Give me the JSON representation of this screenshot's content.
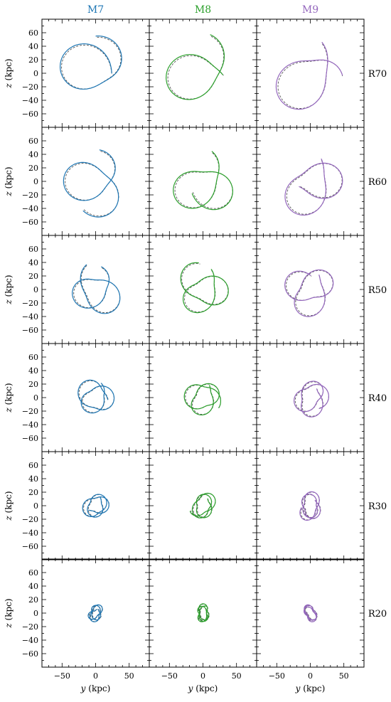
{
  "columns": [
    {
      "label": "M7",
      "color": "#1f77b4"
    },
    {
      "label": "M8",
      "color": "#2ca02c"
    },
    {
      "label": "M9",
      "color": "#9467bd"
    }
  ],
  "rows": [
    {
      "label": "R70",
      "radius": 55
    },
    {
      "label": "R60",
      "radius": 48
    },
    {
      "label": "R50",
      "radius": 38
    },
    {
      "label": "R40",
      "radius": 28
    },
    {
      "label": "R30",
      "radius": 20
    },
    {
      "label": "R20",
      "radius": 12
    }
  ],
  "axes": {
    "xlabel_var": "y",
    "xlabel_unit": " (kpc)",
    "ylabel_var": "z",
    "ylabel_unit": " (kpc)",
    "xlim": [
      -80,
      80
    ],
    "ylim": [
      -80,
      80
    ],
    "xticks": [
      -50,
      0,
      50
    ],
    "xtick_labels": [
      "−50",
      "0",
      "50"
    ],
    "yticks": [
      60,
      40,
      20,
      0,
      -20,
      -40,
      -60
    ],
    "ytick_labels": [
      "60",
      "40",
      "20",
      "0",
      "−20",
      "−40",
      "−60"
    ],
    "top_row_yticks": [
      60,
      40,
      20,
      0,
      -20,
      -40,
      -60
    ],
    "top_row_ytick_labels": [
      "60",
      "40",
      "20",
      "0",
      "−20",
      "−40",
      "−60"
    ]
  },
  "chart_data": {
    "type": "line",
    "layout": "grid 6 rows x 3 columns",
    "series_styles": {
      "model": "solid, column color",
      "reference": "dashed, dark gray"
    },
    "xlim": [
      -80,
      80
    ],
    "ylim": [
      -80,
      80
    ],
    "rows": [
      "R70",
      "R60",
      "R50",
      "R40",
      "R30",
      "R20"
    ],
    "columns": [
      "M7",
      "M8",
      "M9"
    ],
    "apocenter_kpc": {
      "R70": 70,
      "R60": 60,
      "R50": 50,
      "R40": 40,
      "R30": 30,
      "R20": 20
    },
    "grid": false
  }
}
